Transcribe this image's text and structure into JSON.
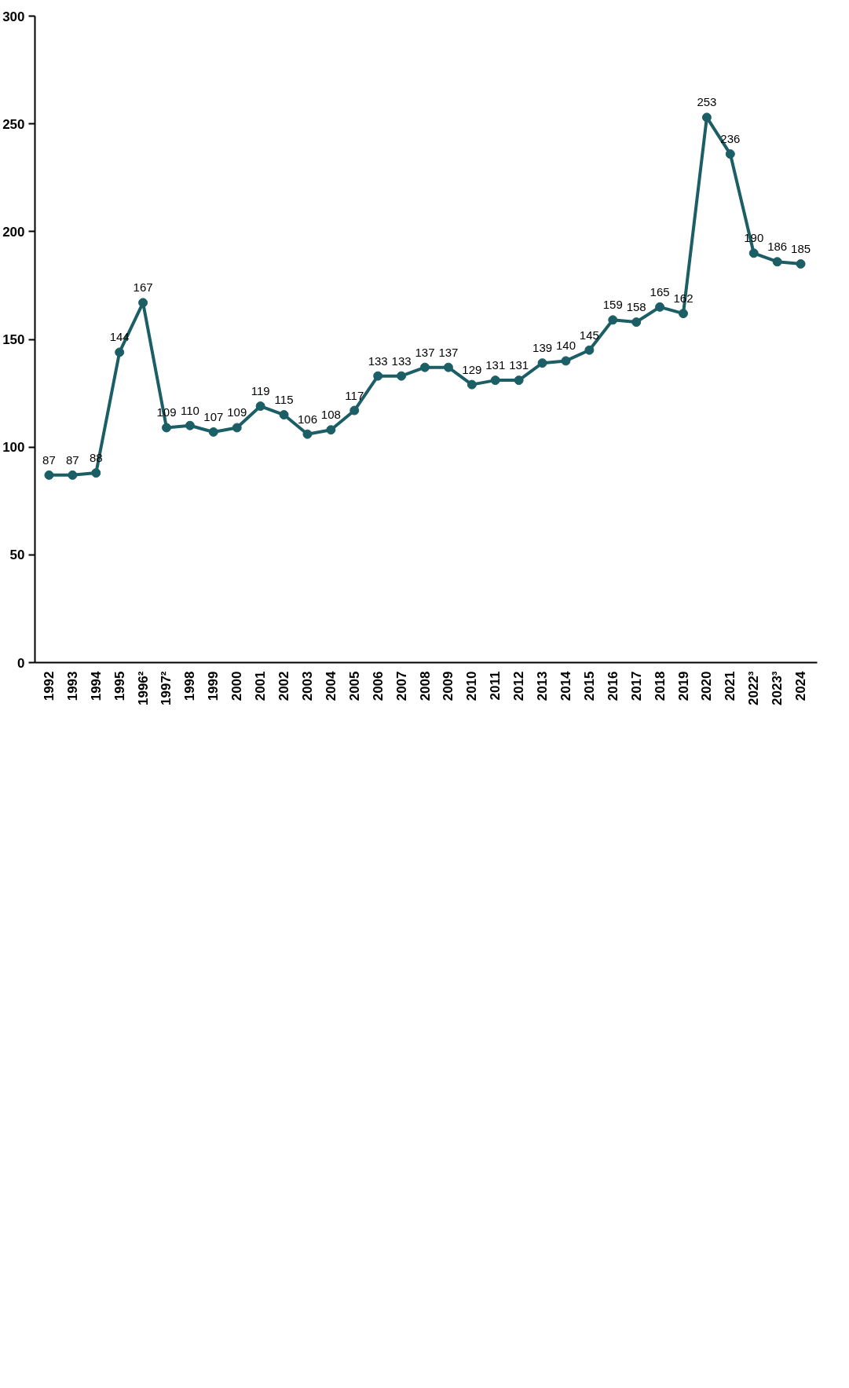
{
  "chart_data": {
    "type": "line",
    "categories": [
      "1992",
      "1993",
      "1994",
      "1995",
      "1996²",
      "1997²",
      "1998",
      "1999",
      "2000",
      "2001",
      "2002",
      "2003",
      "2004",
      "2005",
      "2006",
      "2007",
      "2008",
      "2009",
      "2010",
      "2011",
      "2012",
      "2013",
      "2014",
      "2015",
      "2016",
      "2017",
      "2018",
      "2019",
      "2020",
      "2021",
      "2022³",
      "2023³",
      "2024"
    ],
    "series": [
      {
        "color": "#1b5e66",
        "values": [
          87,
          87,
          88,
          144,
          167,
          109,
          110,
          107,
          109,
          119,
          115,
          106,
          108,
          117,
          133,
          133,
          137,
          137,
          129,
          131,
          131,
          139,
          140,
          145,
          159,
          158,
          165,
          162,
          253,
          236,
          190,
          186,
          185
        ]
      }
    ],
    "ylim": [
      0,
      300
    ],
    "yticks": [
      0,
      50,
      100,
      150,
      200,
      250,
      300
    ],
    "data_labels": true,
    "marker": "circle",
    "grid": false
  }
}
